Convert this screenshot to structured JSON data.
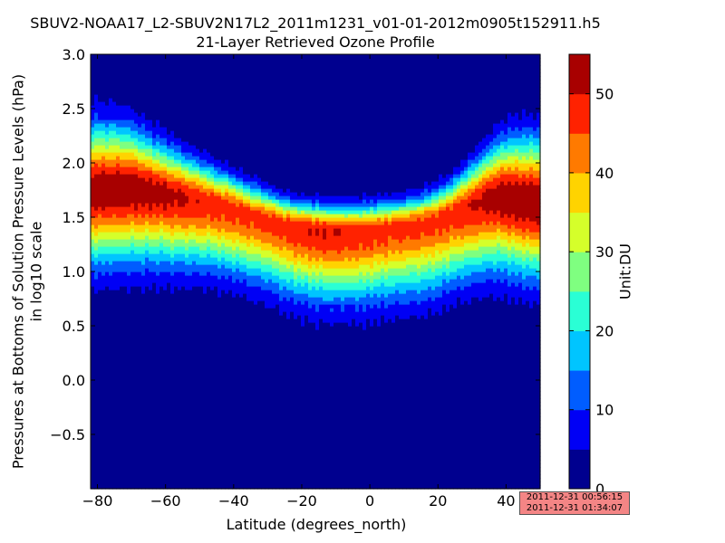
{
  "title_line1": "SBUV2-NOAA17_L2-SBUV2N17L2_2011m1231_v01-01-2012m0905t152911.h5",
  "title_line2": "21-Layer Retrieved Ozone Profile",
  "ylabel_line1": "Pressures at Bottoms of Solution Pressure Levels (hPa)",
  "ylabel_line2": "in log10 scale",
  "xlabel": "Latitude (degrees_north)",
  "colorbar_label": "Unit:DU",
  "timestamp": {
    "start": "2011-12-31 00:56:15",
    "end": "2011-12-31 01:34:07"
  },
  "colors": {
    "levels": [
      "#00008f",
      "#0000f5",
      "#005dff",
      "#00c5ff",
      "#2affd5",
      "#7fff80",
      "#d5ff2a",
      "#ffd300",
      "#ff7a00",
      "#ff2200",
      "#a80000"
    ]
  },
  "chart_data": {
    "type": "heatmap",
    "title": "SBUV2-NOAA17_L2-SBUV2N17L2_2011m1231_v01-01-2012m0905t152911.h5 / 21-Layer Retrieved Ozone Profile",
    "xlabel": "Latitude (degrees_north)",
    "ylabel": "Pressures at Bottoms of Solution Pressure Levels (hPa) in log10 scale",
    "xlim": [
      -82,
      50
    ],
    "ylim": [
      -1.0,
      3.0
    ],
    "xticks": [
      -80,
      -60,
      -40,
      -20,
      0,
      20,
      40
    ],
    "xtick_labels": [
      "−80",
      "−60",
      "−40",
      "−20",
      "0",
      "20",
      "40"
    ],
    "yticks": [
      -0.5,
      0.0,
      0.5,
      1.0,
      1.5,
      2.0,
      2.5,
      3.0
    ],
    "ytick_labels": [
      "−0.5",
      "0.0",
      "0.5",
      "1.0",
      "1.5",
      "2.0",
      "2.5",
      "3.0"
    ],
    "colorbar": {
      "label": "Unit:DU",
      "range": [
        0,
        55
      ],
      "levels": [
        0,
        5,
        10,
        15,
        20,
        25,
        30,
        35,
        40,
        45,
        50,
        55
      ],
      "ticks": [
        0,
        10,
        20,
        30,
        40,
        50
      ],
      "tick_labels": [
        "0",
        "10",
        "20",
        "30",
        "40",
        "50"
      ]
    },
    "latitudes": [
      -82,
      -80,
      -75,
      -70,
      -65,
      -60,
      -55,
      -50,
      -45,
      -40,
      -35,
      -30,
      -25,
      -20,
      -15,
      -10,
      -5,
      0,
      5,
      10,
      15,
      20,
      25,
      30,
      35,
      40,
      45,
      50
    ],
    "profile_peak_log_p": [
      1.75,
      1.75,
      1.76,
      1.77,
      1.75,
      1.72,
      1.69,
      1.66,
      1.62,
      1.58,
      1.53,
      1.48,
      1.43,
      1.4,
      1.38,
      1.37,
      1.37,
      1.38,
      1.4,
      1.42,
      1.44,
      1.48,
      1.55,
      1.62,
      1.68,
      1.7,
      1.66,
      1.64
    ],
    "profile_peak_du": [
      54,
      54,
      54,
      54,
      53,
      52,
      51,
      49,
      48,
      47,
      47,
      47,
      48,
      49,
      50,
      50,
      49,
      48,
      47,
      47,
      47,
      47,
      48,
      50,
      52,
      54,
      55,
      55
    ],
    "profile_low_width": [
      0.42,
      0.42,
      0.42,
      0.42,
      0.41,
      0.4,
      0.39,
      0.38,
      0.37,
      0.37,
      0.37,
      0.37,
      0.38,
      0.39,
      0.4,
      0.4,
      0.4,
      0.4,
      0.4,
      0.4,
      0.4,
      0.4,
      0.4,
      0.41,
      0.42,
      0.43,
      0.43,
      0.43
    ],
    "profile_high_width": [
      0.38,
      0.38,
      0.37,
      0.34,
      0.3,
      0.27,
      0.24,
      0.22,
      0.2,
      0.18,
      0.17,
      0.16,
      0.15,
      0.15,
      0.15,
      0.15,
      0.15,
      0.15,
      0.15,
      0.15,
      0.16,
      0.17,
      0.19,
      0.23,
      0.28,
      0.33,
      0.36,
      0.37
    ]
  }
}
